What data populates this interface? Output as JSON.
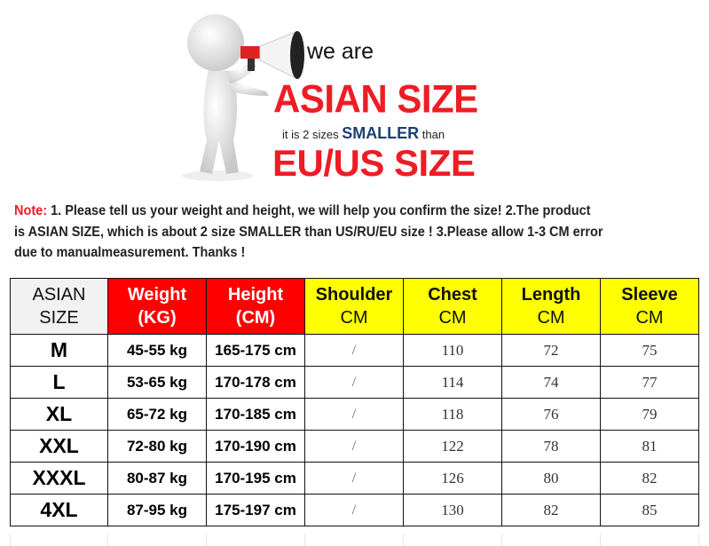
{
  "banner": {
    "line1": "we are",
    "line2": "ASIAN SIZE",
    "line3_pre": "it is 2 sizes ",
    "line3_em": "SMALLER",
    "line3_post": " than",
    "line4": "EU/US SIZE",
    "colors": {
      "red": "#ee1c25",
      "blue": "#1f3f73"
    }
  },
  "note": {
    "label": "Note:",
    "line1": " 1. Please tell us your weight and height, we will help you confirm the size!  2.The product",
    "line2": "is ASIAN SIZE, which is about 2 size SMALLER than US/RU/EU size ! 3.Please allow 1-3 CM error",
    "line3": "due to manualmeasurement.  Thanks !"
  },
  "table": {
    "headers": [
      {
        "top": "ASIAN",
        "bottom": "SIZE"
      },
      {
        "top": "Weight",
        "bottom": "(KG)"
      },
      {
        "top": "Height",
        "bottom": "(CM)"
      },
      {
        "top": "Shoulder",
        "bottom": "CM"
      },
      {
        "top": "Chest",
        "bottom": "CM"
      },
      {
        "top": "Length",
        "bottom": "CM"
      },
      {
        "top": "Sleeve",
        "bottom": "CM"
      }
    ],
    "header_colors": {
      "size": "#f1f1f1",
      "body": "#ff0000",
      "garment": "#ffff00"
    },
    "rows": [
      [
        "M",
        "45-55  kg",
        "165-175 cm",
        "/",
        "110",
        "72",
        "75"
      ],
      [
        "L",
        "53-65  kg",
        "170-178 cm",
        "/",
        "114",
        "74",
        "77"
      ],
      [
        "XL",
        "65-72  kg",
        "170-185 cm",
        "/",
        "118",
        "76",
        "79"
      ],
      [
        "XXL",
        "72-80  kg",
        "170-190 cm",
        "/",
        "122",
        "78",
        "81"
      ],
      [
        "XXXL",
        "80-87 kg",
        "170-195 cm",
        "/",
        "126",
        "80",
        "82"
      ],
      [
        "4XL",
        "87-95 kg",
        "175-197 cm",
        "/",
        "130",
        "82",
        "85"
      ]
    ]
  }
}
